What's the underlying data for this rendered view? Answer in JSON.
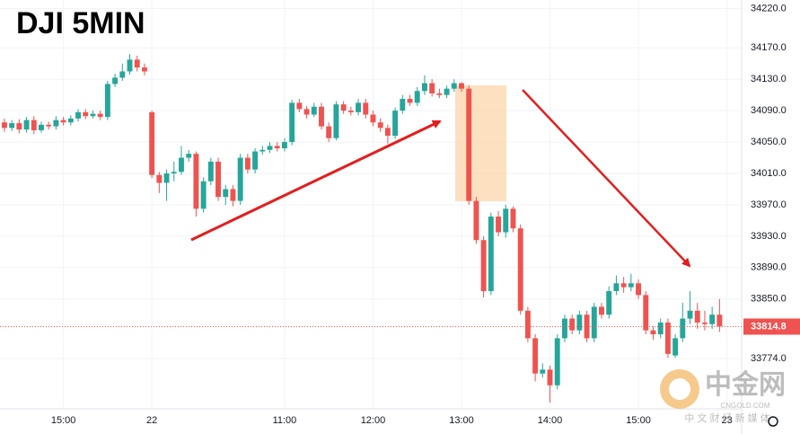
{
  "chart_data": {
    "type": "candlestick",
    "title": "DJI 5MIN",
    "x": [
      0,
      1,
      2,
      3,
      4,
      5,
      6,
      7,
      8,
      9,
      10,
      11,
      12,
      13,
      14,
      15,
      16,
      17,
      18,
      19,
      20,
      21,
      22,
      23,
      24,
      25,
      26,
      27,
      28,
      29,
      30,
      31,
      32,
      33,
      34,
      35,
      36,
      37,
      38,
      39,
      40,
      41,
      42,
      43,
      44,
      45,
      46,
      47,
      48,
      49,
      50,
      51,
      52,
      53,
      54,
      55,
      56,
      57,
      58,
      59,
      60,
      61,
      62,
      63,
      64,
      65,
      66,
      67,
      68,
      69,
      70,
      71,
      72,
      73,
      74,
      75,
      76,
      77,
      78,
      79,
      80,
      81,
      82,
      83,
      84,
      85,
      86,
      87,
      88,
      89,
      90,
      91,
      92,
      93,
      94,
      95,
      96,
      97
    ],
    "open": [
      34075,
      34068,
      34074,
      34066,
      34078,
      34065,
      34072,
      34070,
      34078,
      34075,
      34080,
      34088,
      34083,
      34086,
      34082,
      34124,
      34132,
      34140,
      34155,
      34145,
      34088,
      34008,
      33998,
      34010,
      34012,
      34030,
      34035,
      33965,
      34000,
      34025,
      33980,
      33990,
      33975,
      34030,
      34015,
      34038,
      34040,
      34045,
      34042,
      34050,
      34100,
      34092,
      34085,
      34095,
      34070,
      34055,
      34098,
      34090,
      34088,
      34100,
      34085,
      34075,
      34068,
      34058,
      34090,
      34105,
      34100,
      34115,
      34125,
      34112,
      34110,
      34118,
      34125,
      34118,
      33975,
      33925,
      33860,
      33955,
      33935,
      33965,
      33940,
      33835,
      33800,
      33755,
      33760,
      33740,
      33800,
      33825,
      33810,
      33830,
      33800,
      33840,
      33830,
      33860,
      33870,
      33865,
      33870,
      33855,
      33810,
      33805,
      33820,
      33778,
      33800,
      33825,
      33835,
      33820,
      33818,
      33830
    ],
    "high": [
      34080,
      34078,
      34079,
      34082,
      34083,
      34076,
      34076,
      34083,
      34082,
      34084,
      34092,
      34092,
      34090,
      34090,
      34128,
      34137,
      34150,
      34162,
      34160,
      34150,
      34090,
      34012,
      34015,
      34025,
      34045,
      34040,
      34038,
      34005,
      34030,
      34030,
      33995,
      33995,
      34035,
      34035,
      34042,
      34045,
      34050,
      34050,
      34055,
      34104,
      34105,
      34096,
      34100,
      34100,
      34075,
      34102,
      34102,
      34095,
      34105,
      34105,
      34090,
      34080,
      34072,
      34094,
      34110,
      34110,
      34120,
      34135,
      34130,
      34118,
      34122,
      34130,
      34126,
      34122,
      33980,
      33930,
      33960,
      33962,
      33970,
      33968,
      33945,
      33840,
      33805,
      33768,
      33765,
      33805,
      33830,
      33830,
      33835,
      33835,
      33845,
      33845,
      33866,
      33880,
      33878,
      33882,
      33875,
      33860,
      33815,
      33825,
      33825,
      33805,
      33845,
      33860,
      33845,
      33835,
      33840,
      33850
    ],
    "low": [
      34063,
      34064,
      34061,
      34062,
      34060,
      34062,
      34066,
      34066,
      34071,
      34071,
      34076,
      34079,
      34080,
      34078,
      34078,
      34120,
      34128,
      34136,
      34140,
      34135,
      34004,
      33985,
      33975,
      34000,
      34008,
      34025,
      33955,
      33960,
      33995,
      33975,
      33970,
      33968,
      33970,
      34010,
      34010,
      34034,
      34036,
      34038,
      34038,
      34046,
      34088,
      34080,
      34082,
      34066,
      34050,
      34052,
      34086,
      34084,
      34084,
      34080,
      34070,
      34063,
      34048,
      34054,
      34086,
      34096,
      34096,
      34110,
      34108,
      34106,
      34106,
      34114,
      34114,
      33970,
      33920,
      33852,
      33855,
      33930,
      33928,
      33935,
      33830,
      33795,
      33745,
      33750,
      33718,
      33735,
      33795,
      33805,
      33805,
      33795,
      33795,
      33825,
      33825,
      33855,
      33858,
      33860,
      33850,
      33805,
      33798,
      33800,
      33775,
      33775,
      33795,
      33818,
      33812,
      33810,
      33812,
      33808
    ],
    "close": [
      34068,
      34074,
      34066,
      34078,
      34065,
      34072,
      34070,
      34078,
      34075,
      34080,
      34088,
      34083,
      34086,
      34082,
      34124,
      34132,
      34140,
      34155,
      34145,
      34140,
      34008,
      33998,
      34010,
      34012,
      34030,
      34035,
      33965,
      34000,
      34025,
      33980,
      33990,
      33975,
      34030,
      34015,
      34038,
      34040,
      34045,
      34042,
      34050,
      34100,
      34092,
      34085,
      34095,
      34070,
      34055,
      34098,
      34090,
      34088,
      34100,
      34085,
      34075,
      34068,
      34058,
      34090,
      34105,
      34100,
      34115,
      34125,
      34112,
      34110,
      34118,
      34125,
      34118,
      33975,
      33925,
      33860,
      33955,
      33935,
      33965,
      33940,
      33835,
      33800,
      33755,
      33760,
      33740,
      33800,
      33825,
      33810,
      33830,
      33800,
      33840,
      33830,
      33860,
      33870,
      33865,
      33870,
      33855,
      33810,
      33805,
      33820,
      33780,
      33800,
      33825,
      33835,
      33820,
      33818,
      33830,
      33815
    ],
    "up_color": "#26a69a",
    "down_color": "#ef5350",
    "xlim": [
      -0.6,
      100
    ],
    "ylim": [
      33710,
      34231
    ],
    "xticks": [
      {
        "value": 8,
        "label": "15:00"
      },
      {
        "value": 20,
        "label": "22"
      },
      {
        "value": 38,
        "label": "11:00"
      },
      {
        "value": 50,
        "label": "12:00"
      },
      {
        "value": 62,
        "label": "13:00"
      },
      {
        "value": 74,
        "label": "14:00"
      },
      {
        "value": 86,
        "label": "15:00"
      },
      {
        "value": 98,
        "label": "23"
      }
    ],
    "yticks": [
      {
        "value": 34220,
        "label": "34220.0"
      },
      {
        "value": 34170,
        "label": "34170.0"
      },
      {
        "value": 34130,
        "label": "34130.0"
      },
      {
        "value": 34090,
        "label": "34090.0"
      },
      {
        "value": 34050,
        "label": "34050.0"
      },
      {
        "value": 34010,
        "label": "34010.0"
      },
      {
        "value": 33970,
        "label": "33970.0"
      },
      {
        "value": 33930,
        "label": "33930.0"
      },
      {
        "value": 33890,
        "label": "33890.0"
      },
      {
        "value": 33850,
        "label": "33850.0"
      },
      {
        "value": 33774,
        "label": "33774.0"
      }
    ],
    "last_price": 33814.8,
    "grid": true,
    "watermark": {
      "name": "中金网",
      "site": "CNGOLD.COM",
      "tagline": "中 文 财 经 新 媒 体"
    }
  }
}
